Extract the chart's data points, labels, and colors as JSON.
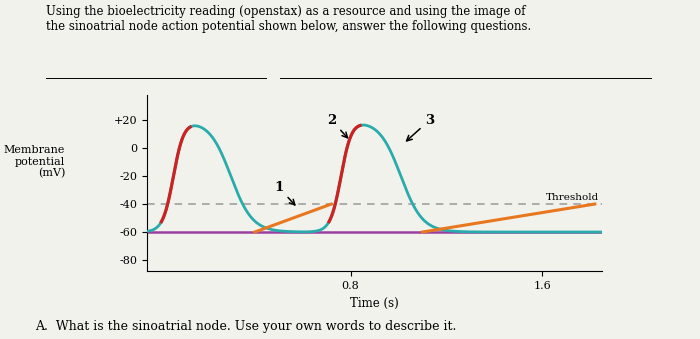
{
  "title_text": "Using the bioelectricity reading (openstax) as a resource and using the image of\nthe sinoatrial node action potential shown below, answer the following questions.",
  "ylabel": "Membrane\npotential\n(mV)",
  "xlabel": "Time (s)",
  "xlim": [
    -0.05,
    1.85
  ],
  "ylim": [
    -88,
    38
  ],
  "yticks": [
    20,
    0,
    -20,
    -40,
    -60,
    -80
  ],
  "ytick_labels": [
    "+20",
    "0",
    "-20",
    "-40",
    "-60",
    "-80"
  ],
  "xticks": [
    0.8,
    1.6
  ],
  "threshold_y": -40,
  "resting_y": -60,
  "teal_color": "#2AABAB",
  "red_color": "#CC2222",
  "orange_color": "#E87820",
  "purple_color": "#9B3FA0",
  "dashed_color": "#999999",
  "background_color": "#F2F2ED",
  "threshold_label": "Threshold",
  "question_text": "A.  What is the sinoatrial node. Use your own words to describe it."
}
